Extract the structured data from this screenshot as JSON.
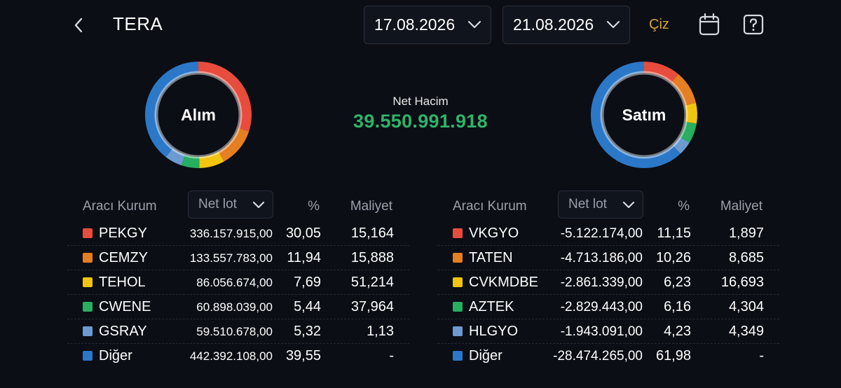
{
  "header": {
    "title": "TERA",
    "date_start": "17.08.2026",
    "date_end": "21.08.2026",
    "draw_label": "Çiz",
    "back_icon": "chevron-left-icon",
    "calendar_icon": "calendar-icon",
    "help_icon": "help-icon"
  },
  "summary": {
    "net_volume_label": "Net Hacim",
    "net_volume_value": "39.550.991.918",
    "net_volume_color": "#2fb36a"
  },
  "colors": {
    "red": "#e84c3d",
    "orange": "#e67e22",
    "yellow": "#f1c40f",
    "green": "#27ae60",
    "lightblue": "#6b9bd1",
    "blue": "#2b78c9"
  },
  "buy": {
    "donut_label": "Alım",
    "columns": {
      "broker": "Aracı Kurum",
      "lot_select": "Net lot",
      "pct": "%",
      "cost": "Maliyet"
    },
    "rows": [
      {
        "name": "PEKGY",
        "lot": "336.157.915,00",
        "pct": "30,05",
        "cost": "15,164",
        "color": "#e84c3d"
      },
      {
        "name": "CEMZY",
        "lot": "133.557.783,00",
        "pct": "11,94",
        "cost": "15,888",
        "color": "#e67e22"
      },
      {
        "name": "TEHOL",
        "lot": "86.056.674,00",
        "pct": "7,69",
        "cost": "51,214",
        "color": "#f1c40f"
      },
      {
        "name": "CWENE",
        "lot": "60.898.039,00",
        "pct": "5,44",
        "cost": "37,964",
        "color": "#27ae60"
      },
      {
        "name": "GSRAY",
        "lot": "59.510.678,00",
        "pct": "5,32",
        "cost": "1,13",
        "color": "#6b9bd1"
      },
      {
        "name": "Diğer",
        "lot": "442.392.108,00",
        "pct": "39,55",
        "cost": "-",
        "color": "#2b78c9"
      }
    ]
  },
  "sell": {
    "donut_label": "Satım",
    "columns": {
      "broker": "Aracı Kurum",
      "lot_select": "Net lot",
      "pct": "%",
      "cost": "Maliyet"
    },
    "rows": [
      {
        "name": "VKGYO",
        "lot": "-5.122.174,00",
        "pct": "11,15",
        "cost": "1,897",
        "color": "#e84c3d"
      },
      {
        "name": "TATEN",
        "lot": "-4.713.186,00",
        "pct": "10,26",
        "cost": "8,685",
        "color": "#e67e22"
      },
      {
        "name": "CVKMDBE",
        "lot": "-2.861.339,00",
        "pct": "6,23",
        "cost": "16,693",
        "color": "#f1c40f"
      },
      {
        "name": "AZTEK",
        "lot": "-2.829.443,00",
        "pct": "6,16",
        "cost": "4,304",
        "color": "#27ae60"
      },
      {
        "name": "HLGYO",
        "lot": "-1.943.091,00",
        "pct": "4,23",
        "cost": "4,349",
        "color": "#6b9bd1"
      },
      {
        "name": "Diğer",
        "lot": "-28.474.265,00",
        "pct": "61,98",
        "cost": "-",
        "color": "#2b78c9"
      }
    ]
  }
}
